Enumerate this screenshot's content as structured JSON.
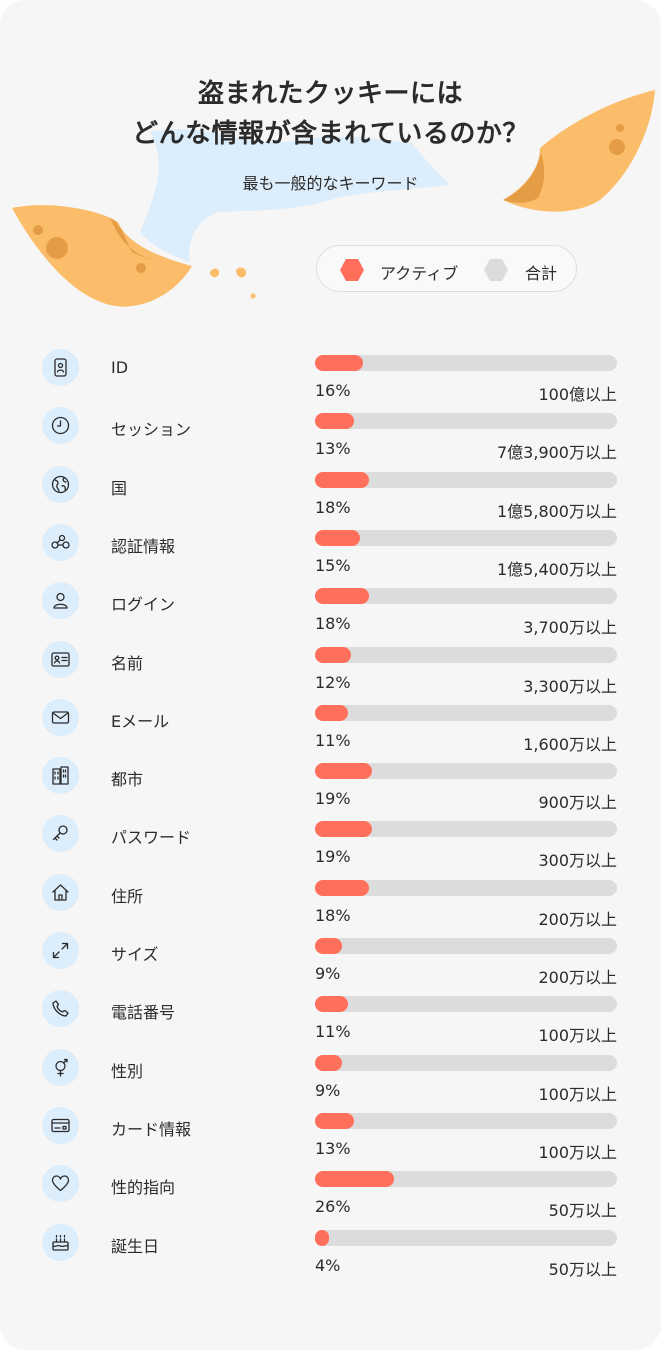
{
  "header": {
    "title_line1": "盗まれたクッキーには",
    "title_line2": "どんな情報が含まれているのか？",
    "subtitle": "最も一般的なキーワード"
  },
  "legend": {
    "active_label": "アクティブ",
    "total_label": "合計",
    "active_color": "#ff6f5b",
    "total_color": "#dcdcdc"
  },
  "colors": {
    "accent": "#ff6f5b",
    "track": "#dcdcdc",
    "icon_bg": "#dcedfb",
    "cookie": "#fbbd6a",
    "ribbon": "#dcedfb"
  },
  "chart_data": {
    "type": "bar",
    "orientation": "horizontal",
    "title": "盗まれたクッキーには どんな情報が含まれているのか？",
    "subtitle": "最も一般的なキーワード",
    "xlim": [
      0,
      100
    ],
    "series": [
      {
        "name": "アクティブ",
        "unit": "%",
        "values": [
          16,
          13,
          18,
          15,
          18,
          12,
          11,
          19,
          19,
          18,
          9,
          11,
          9,
          13,
          26,
          4
        ]
      },
      {
        "name": "合計",
        "values": [
          "100億以上",
          "7億3,900万以上",
          "1億5,800万以上",
          "1億5,400万以上",
          "3,700万以上",
          "3,300万以上",
          "1,600万以上",
          "900万以上",
          "300万以上",
          "200万以上",
          "200万以上",
          "100万以上",
          "100万以上",
          "100万以上",
          "50万以上",
          "50万以上"
        ]
      }
    ],
    "rows": [
      {
        "label": "ID",
        "icon": "id-badge-icon",
        "active_pct": 16,
        "pct_label": "16%",
        "total_label": "100億以上"
      },
      {
        "label": "セッション",
        "icon": "clock-icon",
        "active_pct": 13,
        "pct_label": "13%",
        "total_label": "7億3,900万以上"
      },
      {
        "label": "国",
        "icon": "globe-icon",
        "active_pct": 18,
        "pct_label": "18%",
        "total_label": "1億5,800万以上"
      },
      {
        "label": "認証情報",
        "icon": "connection-icon",
        "active_pct": 15,
        "pct_label": "15%",
        "total_label": "1億5,400万以上"
      },
      {
        "label": "ログイン",
        "icon": "user-icon",
        "active_pct": 18,
        "pct_label": "18%",
        "total_label": "3,700万以上"
      },
      {
        "label": "名前",
        "icon": "name-card-icon",
        "active_pct": 12,
        "pct_label": "12%",
        "total_label": "3,300万以上"
      },
      {
        "label": "Eメール",
        "icon": "envelope-icon",
        "active_pct": 11,
        "pct_label": "11%",
        "total_label": "1,600万以上"
      },
      {
        "label": "都市",
        "icon": "buildings-icon",
        "active_pct": 19,
        "pct_label": "19%",
        "total_label": "900万以上"
      },
      {
        "label": "パスワード",
        "icon": "key-icon",
        "active_pct": 19,
        "pct_label": "19%",
        "total_label": "300万以上"
      },
      {
        "label": "住所",
        "icon": "house-icon",
        "active_pct": 18,
        "pct_label": "18%",
        "total_label": "200万以上"
      },
      {
        "label": "サイズ",
        "icon": "resize-arrows-icon",
        "active_pct": 9,
        "pct_label": "9%",
        "total_label": "200万以上"
      },
      {
        "label": "電話番号",
        "icon": "phone-icon",
        "active_pct": 11,
        "pct_label": "11%",
        "total_label": "100万以上"
      },
      {
        "label": "性別",
        "icon": "gender-icon",
        "active_pct": 9,
        "pct_label": "9%",
        "total_label": "100万以上"
      },
      {
        "label": "カード情報",
        "icon": "credit-card-icon",
        "active_pct": 13,
        "pct_label": "13%",
        "total_label": "100万以上"
      },
      {
        "label": "性的指向",
        "icon": "heart-icon",
        "active_pct": 26,
        "pct_label": "26%",
        "total_label": "50万以上"
      },
      {
        "label": "誕生日",
        "icon": "cake-icon",
        "active_pct": 4,
        "pct_label": "4%",
        "total_label": "50万以上"
      }
    ]
  }
}
